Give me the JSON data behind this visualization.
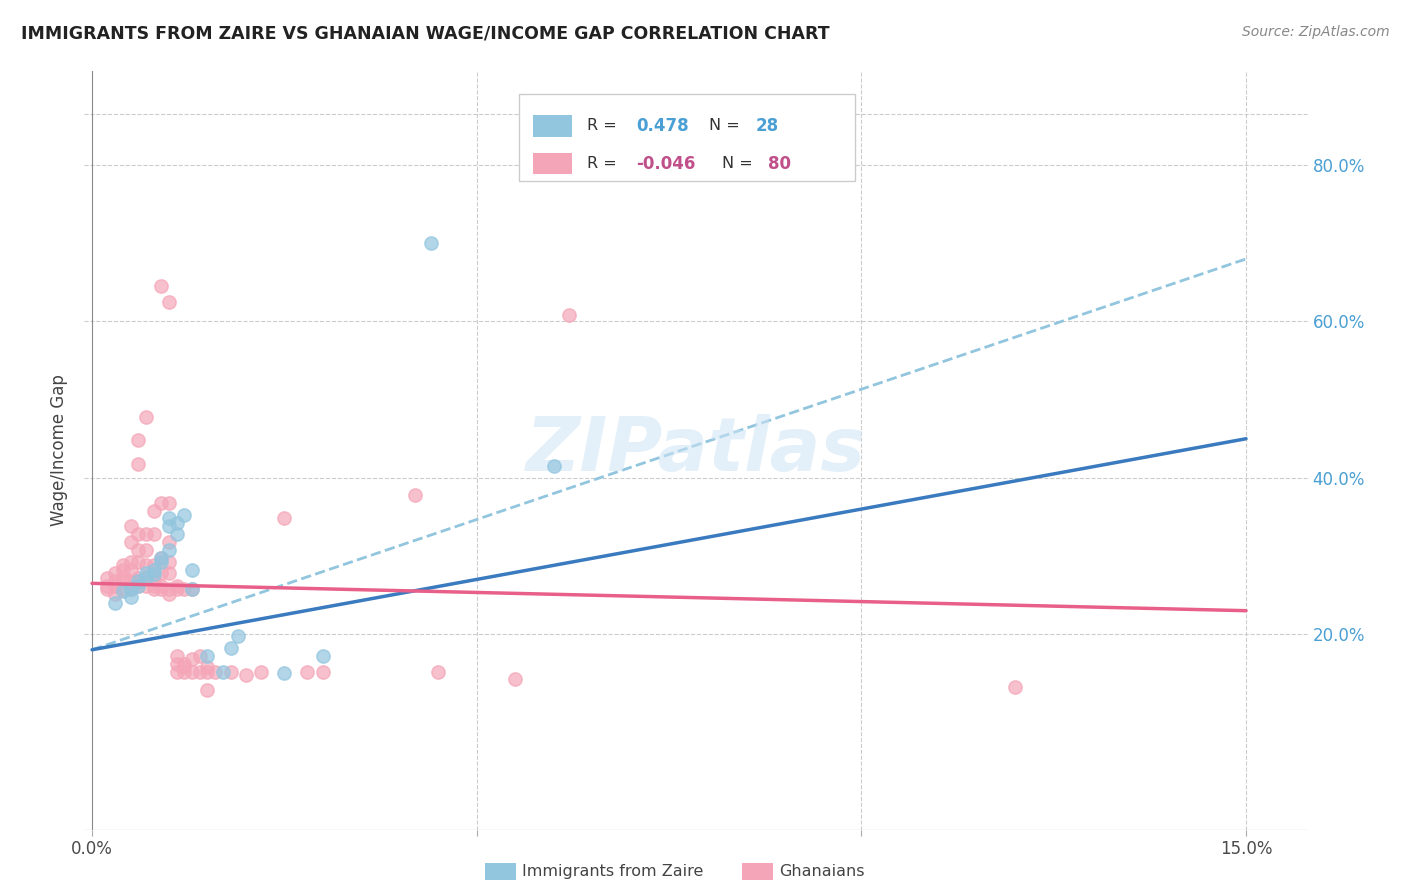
{
  "title": "IMMIGRANTS FROM ZAIRE VS GHANAIAN WAGE/INCOME GAP CORRELATION CHART",
  "source": "Source: ZipAtlas.com",
  "ylabel": "Wage/Income Gap",
  "ytick_vals": [
    0.2,
    0.4,
    0.6,
    0.8
  ],
  "xlim": [
    -0.001,
    0.158
  ],
  "ylim": [
    -0.05,
    0.92
  ],
  "blue_color": "#92c5de",
  "pink_color": "#f4a6b8",
  "trendline_blue": "#3a7abf",
  "trendline_pink": "#e8608a",
  "trendline_dashed_color": "#92c5de",
  "watermark": "ZIPatlas",
  "blue_trend": [
    0.0,
    0.15,
    0.18,
    0.45
  ],
  "pink_trend": [
    0.0,
    0.15,
    0.265,
    0.23
  ],
  "dashed_trend": [
    0.0,
    0.15,
    0.18,
    0.68
  ],
  "blue_scatter": [
    [
      0.003,
      0.24
    ],
    [
      0.004,
      0.255
    ],
    [
      0.005,
      0.258
    ],
    [
      0.005,
      0.248
    ],
    [
      0.006,
      0.268
    ],
    [
      0.006,
      0.262
    ],
    [
      0.007,
      0.278
    ],
    [
      0.007,
      0.272
    ],
    [
      0.008,
      0.282
    ],
    [
      0.008,
      0.277
    ],
    [
      0.009,
      0.298
    ],
    [
      0.009,
      0.292
    ],
    [
      0.01,
      0.308
    ],
    [
      0.01,
      0.338
    ],
    [
      0.01,
      0.348
    ],
    [
      0.011,
      0.328
    ],
    [
      0.011,
      0.342
    ],
    [
      0.012,
      0.352
    ],
    [
      0.013,
      0.258
    ],
    [
      0.013,
      0.282
    ],
    [
      0.015,
      0.172
    ],
    [
      0.017,
      0.152
    ],
    [
      0.018,
      0.182
    ],
    [
      0.019,
      0.198
    ],
    [
      0.025,
      0.15
    ],
    [
      0.03,
      0.172
    ],
    [
      0.044,
      0.7
    ],
    [
      0.06,
      0.415
    ]
  ],
  "pink_scatter": [
    [
      0.002,
      0.258
    ],
    [
      0.002,
      0.262
    ],
    [
      0.002,
      0.272
    ],
    [
      0.003,
      0.252
    ],
    [
      0.003,
      0.262
    ],
    [
      0.003,
      0.268
    ],
    [
      0.003,
      0.278
    ],
    [
      0.004,
      0.258
    ],
    [
      0.004,
      0.268
    ],
    [
      0.004,
      0.272
    ],
    [
      0.004,
      0.282
    ],
    [
      0.004,
      0.288
    ],
    [
      0.005,
      0.258
    ],
    [
      0.005,
      0.268
    ],
    [
      0.005,
      0.282
    ],
    [
      0.005,
      0.292
    ],
    [
      0.005,
      0.318
    ],
    [
      0.005,
      0.338
    ],
    [
      0.006,
      0.262
    ],
    [
      0.006,
      0.268
    ],
    [
      0.006,
      0.272
    ],
    [
      0.006,
      0.292
    ],
    [
      0.006,
      0.308
    ],
    [
      0.006,
      0.328
    ],
    [
      0.006,
      0.418
    ],
    [
      0.006,
      0.448
    ],
    [
      0.007,
      0.262
    ],
    [
      0.007,
      0.272
    ],
    [
      0.007,
      0.288
    ],
    [
      0.007,
      0.308
    ],
    [
      0.007,
      0.328
    ],
    [
      0.007,
      0.478
    ],
    [
      0.008,
      0.258
    ],
    [
      0.008,
      0.262
    ],
    [
      0.008,
      0.272
    ],
    [
      0.008,
      0.288
    ],
    [
      0.008,
      0.328
    ],
    [
      0.008,
      0.358
    ],
    [
      0.009,
      0.258
    ],
    [
      0.009,
      0.262
    ],
    [
      0.009,
      0.278
    ],
    [
      0.009,
      0.298
    ],
    [
      0.009,
      0.368
    ],
    [
      0.009,
      0.645
    ],
    [
      0.01,
      0.252
    ],
    [
      0.01,
      0.258
    ],
    [
      0.01,
      0.278
    ],
    [
      0.01,
      0.292
    ],
    [
      0.01,
      0.318
    ],
    [
      0.01,
      0.368
    ],
    [
      0.01,
      0.625
    ],
    [
      0.011,
      0.152
    ],
    [
      0.011,
      0.162
    ],
    [
      0.011,
      0.172
    ],
    [
      0.011,
      0.258
    ],
    [
      0.011,
      0.262
    ],
    [
      0.012,
      0.152
    ],
    [
      0.012,
      0.158
    ],
    [
      0.012,
      0.162
    ],
    [
      0.012,
      0.258
    ],
    [
      0.013,
      0.152
    ],
    [
      0.013,
      0.168
    ],
    [
      0.013,
      0.258
    ],
    [
      0.014,
      0.152
    ],
    [
      0.014,
      0.172
    ],
    [
      0.015,
      0.128
    ],
    [
      0.015,
      0.152
    ],
    [
      0.015,
      0.158
    ],
    [
      0.016,
      0.152
    ],
    [
      0.018,
      0.152
    ],
    [
      0.02,
      0.148
    ],
    [
      0.022,
      0.152
    ],
    [
      0.025,
      0.348
    ],
    [
      0.028,
      0.152
    ],
    [
      0.03,
      0.152
    ],
    [
      0.045,
      0.152
    ],
    [
      0.12,
      0.132
    ],
    [
      0.055,
      0.142
    ],
    [
      0.062,
      0.608
    ],
    [
      0.042,
      0.378
    ]
  ]
}
